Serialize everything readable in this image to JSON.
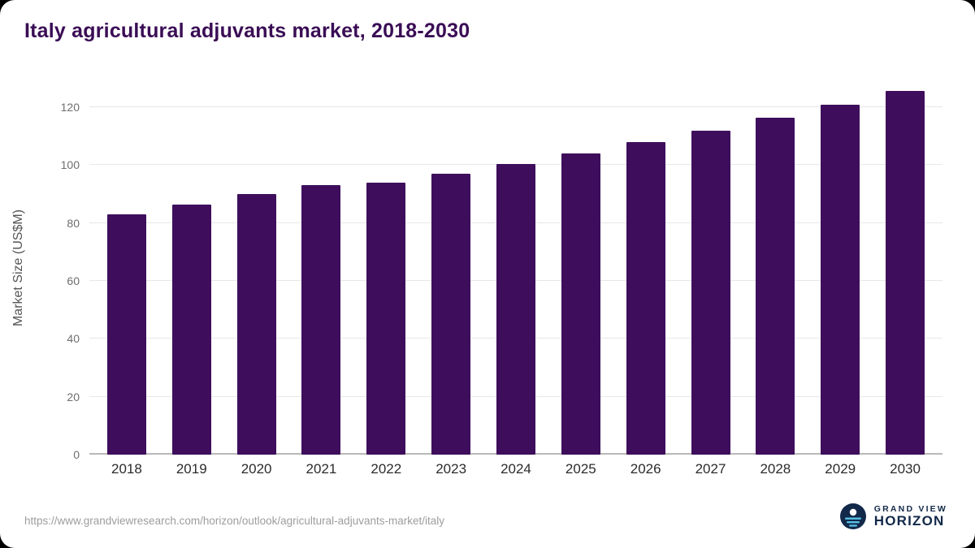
{
  "title": "Italy agricultural adjuvants market, 2018-2030",
  "chart_data": {
    "type": "bar",
    "categories": [
      "2018",
      "2019",
      "2020",
      "2021",
      "2022",
      "2023",
      "2024",
      "2025",
      "2026",
      "2027",
      "2028",
      "2029",
      "2030"
    ],
    "values": [
      83,
      86.5,
      90,
      93,
      94,
      97,
      100.5,
      104,
      108,
      112,
      116.5,
      121,
      125.5
    ],
    "title": "Italy agricultural adjuvants market, 2018-2030",
    "xlabel": "",
    "ylabel": "Market Size (US$M)",
    "ylim": [
      0,
      129
    ],
    "yticks": [
      0,
      20,
      40,
      60,
      80,
      100,
      120
    ],
    "grid": "horizontal",
    "legend": "none",
    "bar_color": "#3e0e5c"
  },
  "footer": {
    "source_url": "https://www.grandviewresearch.com/horizon/outlook/agricultural-adjuvants-market/italy",
    "logo": {
      "line1": "GRAND VIEW",
      "line2": "HORIZON",
      "icon": "horizon-globe-icon",
      "navy": "#12294a",
      "light_blue": "#56c2e6"
    }
  }
}
